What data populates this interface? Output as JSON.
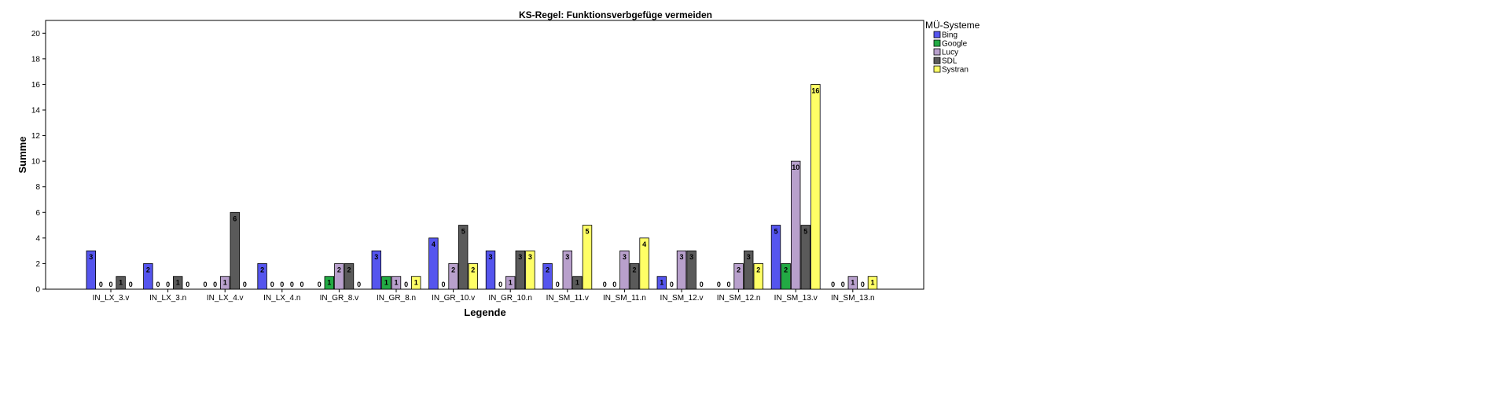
{
  "chart_data": {
    "type": "bar",
    "title": "KS-Regel: Funktionsverbgefüge vermeiden",
    "xlabel": "Legende",
    "ylabel": "Summe",
    "ylim": [
      0,
      21
    ],
    "yticks": [
      0,
      2,
      4,
      6,
      8,
      10,
      12,
      14,
      16,
      18,
      20
    ],
    "grid": false,
    "legend": {
      "title": "MÜ-Systeme",
      "placement": "top-right"
    },
    "categories": [
      "IN_LX_3.v",
      "IN_LX_3.n",
      "IN_LX_4.v",
      "IN_LX_4.n",
      "IN_GR_8.v",
      "IN_GR_8.n",
      "IN_GR_10.v",
      "IN_GR_10.n",
      "IN_SM_11.v",
      "IN_SM_11.n",
      "IN_SM_12.v",
      "IN_SM_12.n",
      "IN_SM_13.v",
      "IN_SM_13.n"
    ],
    "series": [
      {
        "name": "Bing",
        "color": "#5555ee",
        "values": [
          3,
          2,
          0,
          2,
          0,
          3,
          4,
          3,
          2,
          0,
          1,
          0,
          5,
          0
        ]
      },
      {
        "name": "Google",
        "color": "#22aa44",
        "values": [
          0,
          0,
          0,
          0,
          1,
          1,
          0,
          0,
          0,
          0,
          0,
          0,
          2,
          0
        ]
      },
      {
        "name": "Lucy",
        "color": "#b8a0cc",
        "values": [
          0,
          0,
          1,
          0,
          2,
          1,
          2,
          1,
          3,
          3,
          3,
          2,
          10,
          1
        ]
      },
      {
        "name": "SDL",
        "color": "#5a5a5a",
        "values": [
          1,
          1,
          6,
          0,
          2,
          0,
          5,
          3,
          1,
          2,
          3,
          3,
          5,
          0
        ]
      },
      {
        "name": "Systran",
        "color": "#ffff66",
        "values": [
          0,
          0,
          0,
          0,
          0,
          1,
          2,
          3,
          5,
          4,
          0,
          2,
          16,
          1
        ]
      }
    ]
  }
}
